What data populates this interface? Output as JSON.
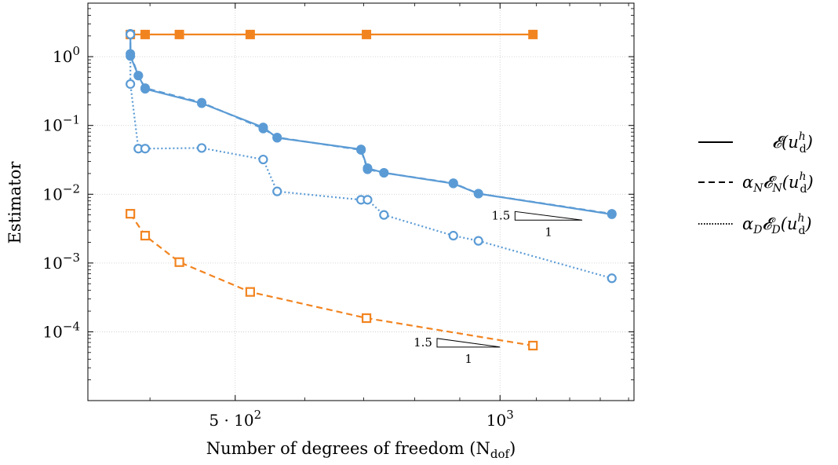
{
  "chart_data": {
    "type": "line",
    "xlabel": "Number of degrees of freedom (N",
    "xlabel_sub": "dof",
    "xlabel_tail": ")",
    "ylabel": "Estimator",
    "x_scale": "log",
    "y_scale": "log",
    "xlim": [
      340,
      1420
    ],
    "ylim": [
      1e-05,
      6
    ],
    "grid": true,
    "x_ticks": [
      {
        "value": 500,
        "label": "5 · 10",
        "exp": "2"
      },
      {
        "value": 1000,
        "label": "10",
        "exp": "3"
      }
    ],
    "y_ticks": [
      {
        "value": 1,
        "exp": "0"
      },
      {
        "value": 0.1,
        "exp": "−1"
      },
      {
        "value": 0.01,
        "exp": "−2"
      },
      {
        "value": 0.001,
        "exp": "−3"
      },
      {
        "value": 0.0001,
        "exp": "−4"
      }
    ],
    "colors": {
      "blue": "#5B9BD5",
      "orange": "#F28420"
    },
    "series": [
      {
        "color": "orange",
        "style": "solid",
        "marker": "filled-square",
        "x": [
          380,
          395,
          432,
          520,
          705,
          1090
        ],
        "y": [
          2.1,
          2.1,
          2.1,
          2.1,
          2.1,
          2.1
        ]
      },
      {
        "color": "orange",
        "style": "dashed",
        "marker": "open-square",
        "x": [
          380,
          395,
          432,
          520,
          705,
          1090
        ],
        "y": [
          0.0052,
          0.0025,
          0.00103,
          0.00038,
          0.000158,
          6.3e-05
        ]
      },
      {
        "color": "blue",
        "style": "solid",
        "marker": "filled-circle",
        "x": [
          380,
          380,
          388,
          395,
          458,
          538,
          558,
          695,
          707,
          738,
          885,
          945,
          1340
        ],
        "y": [
          2.15,
          1.02,
          0.53,
          0.34,
          0.21,
          0.094,
          0.066,
          0.045,
          0.024,
          0.0205,
          0.0143,
          0.0102,
          0.0051
        ]
      },
      {
        "color": "blue",
        "style": "dashed",
        "marker": "filled-circle",
        "x": [
          380,
          380,
          388,
          395,
          458,
          538,
          558,
          695,
          707,
          738,
          885,
          945,
          1340
        ],
        "y": [
          2.15,
          1.1,
          0.53,
          0.35,
          0.215,
          0.09,
          0.067,
          0.044,
          0.023,
          0.0205,
          0.0145,
          0.0102,
          0.0052
        ]
      },
      {
        "color": "blue",
        "style": "dotted",
        "marker": "open-circle",
        "x": [
          380,
          380,
          388,
          395,
          458,
          538,
          558,
          695,
          707,
          738,
          885,
          945,
          1340
        ],
        "y": [
          2.1,
          0.4,
          0.046,
          0.046,
          0.047,
          0.032,
          0.011,
          0.0083,
          0.0083,
          0.005,
          0.0025,
          0.0021,
          0.0006
        ]
      }
    ],
    "slope_triangles": [
      {
        "x_left": 1040,
        "x_right": 1240,
        "y_base": 0.0042,
        "rise_label": "1.5",
        "run_label": "1"
      },
      {
        "x_left": 848,
        "x_right": 1000,
        "y_base": 6e-05,
        "rise_label": "1.5",
        "run_label": "1"
      }
    ],
    "legend": {
      "position": "right",
      "entries": [
        {
          "style": "solid",
          "label": "𝓔(u",
          "sup": "h",
          "sub": "d",
          "tail": ")"
        },
        {
          "style": "dashed",
          "label": "α",
          "label_sub": "N",
          "label2": "𝓔",
          "label2_sub": "N",
          "label3": "(u",
          "sup": "h",
          "sub": "d",
          "tail": ")"
        },
        {
          "style": "dotted",
          "label": "α",
          "label_sub": "D",
          "label2": "𝓔",
          "label2_sub": "D",
          "label3": "(u",
          "sup": "h",
          "sub": "d",
          "tail": ")"
        }
      ]
    }
  }
}
